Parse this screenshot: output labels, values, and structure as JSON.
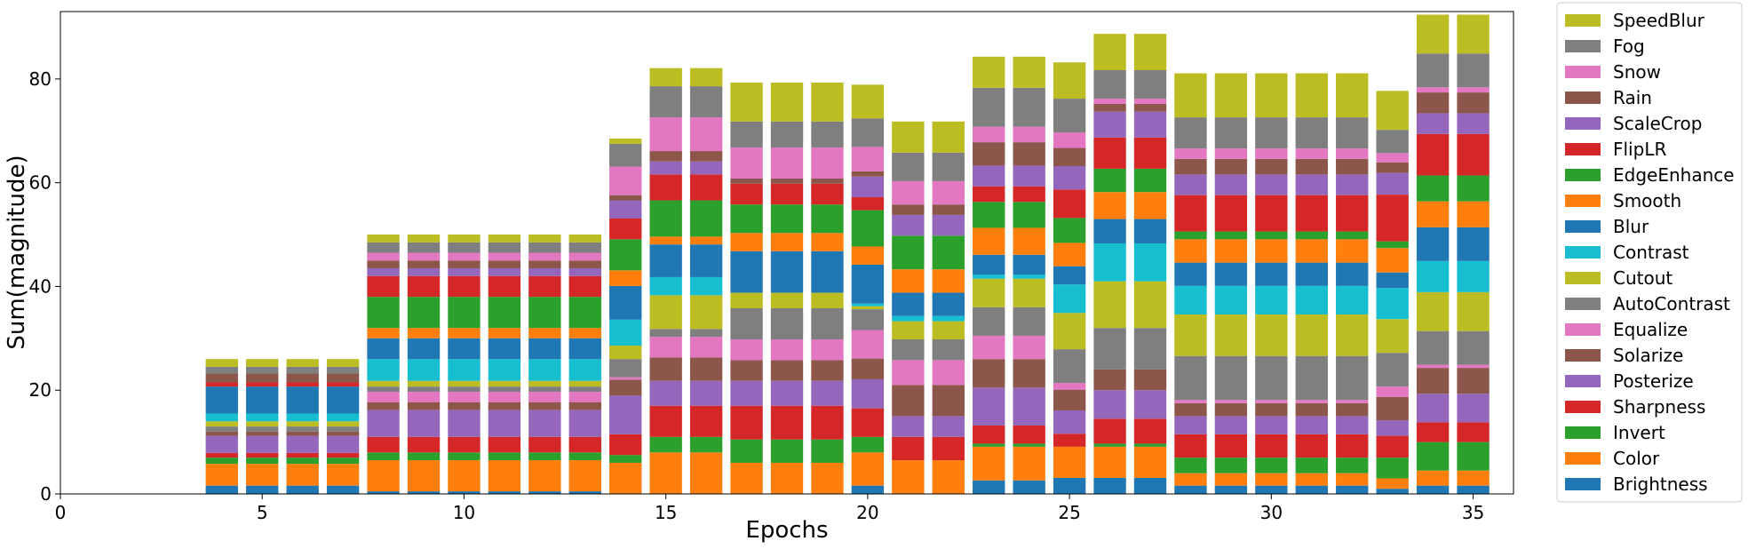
{
  "chart_data": {
    "type": "bar",
    "stacked": true,
    "xlabel": "Epochs",
    "ylabel": "Sum(magnitude)",
    "xlim": [
      0,
      36
    ],
    "ylim": [
      0,
      93
    ],
    "xticks": [
      0,
      5,
      10,
      15,
      20,
      25,
      30,
      35
    ],
    "yticks": [
      0,
      20,
      40,
      60,
      80
    ],
    "legend_position": "outside-right",
    "epochs": [
      4,
      5,
      6,
      7,
      8,
      9,
      10,
      11,
      12,
      13,
      14,
      15,
      16,
      17,
      18,
      19,
      20,
      21,
      22,
      23,
      24,
      25,
      26,
      27,
      28,
      29,
      30,
      31,
      32,
      33,
      34,
      35
    ],
    "series": [
      {
        "name": "Brightness",
        "color": "#1f77b4",
        "values": [
          1.6,
          1.6,
          1.6,
          1.6,
          0.5,
          0.5,
          0.5,
          0.5,
          0.5,
          0.5,
          0,
          0,
          0,
          0,
          0,
          0,
          1.6,
          0,
          0,
          2.6,
          2.6,
          3.1,
          3.1,
          3.1,
          1.6,
          1.6,
          1.6,
          1.6,
          1.6,
          1,
          1.6,
          1.6
        ]
      },
      {
        "name": "Color",
        "color": "#ff7f0e",
        "values": [
          4.2,
          4.2,
          4.2,
          4.2,
          6,
          6,
          6,
          6,
          6,
          6,
          6,
          8,
          8,
          6,
          6,
          6,
          6.4,
          6.5,
          6.5,
          6.5,
          6.5,
          6,
          6,
          6,
          2.4,
          2.4,
          2.4,
          2.4,
          2.4,
          2,
          2.9,
          2.9
        ]
      },
      {
        "name": "Invert",
        "color": "#2ca02c",
        "values": [
          1.2,
          1.2,
          1.2,
          1.2,
          1.5,
          1.5,
          1.5,
          1.5,
          1.5,
          1.5,
          1.5,
          3,
          3,
          4.5,
          4.5,
          4.5,
          3,
          0,
          0,
          0.6,
          0.6,
          0,
          0.6,
          0.6,
          3,
          3,
          3,
          3,
          3,
          4,
          5.5,
          5.5
        ]
      },
      {
        "name": "Sharpness",
        "color": "#d62728",
        "values": [
          0.9,
          0.9,
          0.9,
          0.9,
          3,
          3,
          3,
          3,
          3,
          3,
          4,
          6,
          6,
          6.5,
          6.5,
          6.5,
          5.5,
          4.5,
          4.5,
          3.5,
          3.5,
          2.5,
          4.8,
          4.8,
          4.5,
          4.5,
          4.5,
          4.5,
          4.5,
          4.2,
          3.8,
          3.8
        ]
      },
      {
        "name": "Posterize",
        "color": "#9467bd",
        "values": [
          3.3,
          3.3,
          3.3,
          3.3,
          5.2,
          5.2,
          5.2,
          5.2,
          5.2,
          5.2,
          7.5,
          4.8,
          4.8,
          4.8,
          4.8,
          4.8,
          5.6,
          4,
          4,
          7.3,
          7.3,
          4.5,
          5.5,
          5.5,
          3.5,
          3.5,
          3.5,
          3.5,
          3.5,
          3,
          5.5,
          5.5
        ]
      },
      {
        "name": "Solarize",
        "color": "#8c564b",
        "values": [
          0.8,
          0.8,
          0.8,
          0.8,
          1.5,
          1.5,
          1.5,
          1.5,
          1.5,
          1.5,
          3,
          4.5,
          4.5,
          4,
          4,
          4,
          4,
          6,
          6,
          5.5,
          5.5,
          4,
          4,
          4,
          2.5,
          2.5,
          2.5,
          2.5,
          2.5,
          4.5,
          5,
          5
        ]
      },
      {
        "name": "Equalize",
        "color": "#e377c2",
        "values": [
          0,
          0,
          0,
          0,
          2,
          2,
          2,
          2,
          2,
          2,
          0.5,
          4,
          4,
          4,
          4,
          4,
          5.5,
          4.8,
          4.8,
          4.5,
          4.5,
          1.3,
          0,
          0,
          0.6,
          0.6,
          0.6,
          0.6,
          0.6,
          2,
          0.6,
          0.6
        ]
      },
      {
        "name": "AutoContrast",
        "color": "#7f7f7f",
        "values": [
          1,
          1,
          1,
          1,
          1,
          1,
          1,
          1,
          1,
          1,
          3.5,
          1.5,
          1.5,
          6,
          6,
          6,
          4,
          4,
          4,
          5.5,
          5.5,
          6.5,
          8,
          8,
          8.5,
          8.5,
          8.5,
          8.5,
          8.5,
          6.5,
          6.5,
          6.5
        ]
      },
      {
        "name": "Cutout",
        "color": "#bcbd22",
        "values": [
          1,
          1,
          1,
          1,
          1.1,
          1.1,
          1.1,
          1.1,
          1.1,
          1.1,
          2.6,
          6.5,
          6.5,
          3,
          3,
          3,
          0.6,
          3.5,
          3.5,
          5.5,
          5.5,
          7,
          9,
          9,
          8,
          8,
          8,
          8,
          8,
          6.5,
          7.5,
          7.5
        ]
      },
      {
        "name": "Contrast",
        "color": "#17becf",
        "values": [
          1.5,
          1.5,
          1.5,
          1.5,
          4.2,
          4.2,
          4.2,
          4.2,
          4.2,
          4.2,
          5,
          3.5,
          3.5,
          0,
          0,
          0,
          0.5,
          1,
          1,
          0.8,
          0.8,
          5.5,
          7.3,
          7.3,
          5.5,
          5.5,
          5.5,
          5.5,
          5.5,
          6,
          6,
          6
        ]
      },
      {
        "name": "Blur",
        "color": "#1f77b4",
        "values": [
          5.2,
          5.2,
          5.2,
          5.2,
          4,
          4,
          4,
          4,
          4,
          4,
          6.5,
          6.3,
          6.3,
          8,
          8,
          8,
          7.5,
          4.5,
          4.5,
          3.8,
          3.8,
          3.5,
          4.7,
          4.7,
          4.5,
          4.5,
          4.5,
          4.5,
          4.5,
          3,
          6.5,
          6.5
        ]
      },
      {
        "name": "Smooth",
        "color": "#ff7f0e",
        "values": [
          0,
          0,
          0,
          0,
          2,
          2,
          2,
          2,
          2,
          2,
          3,
          1.5,
          1.5,
          3.5,
          3.5,
          3.5,
          3.5,
          4.5,
          4.5,
          5.2,
          5.2,
          4.5,
          5.2,
          5.2,
          4.5,
          4.5,
          4.5,
          4.5,
          4.5,
          4.7,
          5,
          5
        ]
      },
      {
        "name": "EdgeEnhance",
        "color": "#2ca02c",
        "values": [
          0,
          0,
          0,
          0,
          6,
          6,
          6,
          6,
          6,
          6,
          6,
          7,
          7,
          5.5,
          5.5,
          5.5,
          7,
          6.5,
          6.5,
          5,
          5,
          4.8,
          4.5,
          4.5,
          1.5,
          1.5,
          1.5,
          1.5,
          1.5,
          1.3,
          5,
          5
        ]
      },
      {
        "name": "FlipLR",
        "color": "#d62728",
        "values": [
          0.8,
          0.8,
          0.8,
          0.8,
          4,
          4,
          4,
          4,
          4,
          4,
          4,
          5,
          5,
          4,
          4,
          4,
          2.5,
          0,
          0,
          3,
          3,
          5.5,
          6,
          6,
          7,
          7,
          7,
          7,
          7,
          9,
          8,
          8
        ]
      },
      {
        "name": "ScaleCrop",
        "color": "#9467bd",
        "values": [
          0,
          0,
          0,
          0,
          1.5,
          1.5,
          1.5,
          1.5,
          1.5,
          1.5,
          3.5,
          2.5,
          2.5,
          0,
          0,
          0,
          4,
          4,
          4,
          4,
          4,
          4.5,
          5,
          5,
          4,
          4,
          4,
          4,
          4,
          4.2,
          4,
          4
        ]
      },
      {
        "name": "Rain",
        "color": "#8c564b",
        "values": [
          1.7,
          1.7,
          1.7,
          1.7,
          1.5,
          1.5,
          1.5,
          1.5,
          1.5,
          1.5,
          1,
          2,
          2,
          1,
          1,
          1,
          1,
          2,
          2,
          4.5,
          4.5,
          3.5,
          1.5,
          1.5,
          3,
          3,
          3,
          3,
          3,
          2,
          4,
          4
        ]
      },
      {
        "name": "Snow",
        "color": "#e377c2",
        "values": [
          0,
          0,
          0,
          0,
          1.5,
          1.5,
          1.5,
          1.5,
          1.5,
          1.5,
          5.5,
          6.5,
          6.5,
          6,
          6,
          6,
          4.7,
          4.5,
          4.5,
          3,
          3,
          3,
          1,
          1,
          2,
          2,
          2,
          2,
          2,
          1.8,
          1,
          1
        ]
      },
      {
        "name": "Fog",
        "color": "#7f7f7f",
        "values": [
          1.3,
          1.3,
          1.3,
          1.3,
          2,
          2,
          2,
          2,
          2,
          2,
          4.4,
          6,
          6,
          5,
          5,
          5,
          5.5,
          5.5,
          5.5,
          7.5,
          7.5,
          6.5,
          5.5,
          5.5,
          6,
          6,
          6,
          6,
          6,
          4.5,
          6.5,
          6.5
        ]
      },
      {
        "name": "SpeedBlur",
        "color": "#bcbd22",
        "values": [
          1.5,
          1.5,
          1.5,
          1.5,
          1.5,
          1.5,
          1.5,
          1.5,
          1.5,
          1.5,
          1,
          3.5,
          3.5,
          7.5,
          7.5,
          7.5,
          6.5,
          6,
          6,
          6,
          6,
          7,
          7,
          7,
          8.5,
          8.5,
          8.5,
          8.5,
          8.5,
          7.5,
          7.5,
          7.5
        ]
      }
    ]
  }
}
